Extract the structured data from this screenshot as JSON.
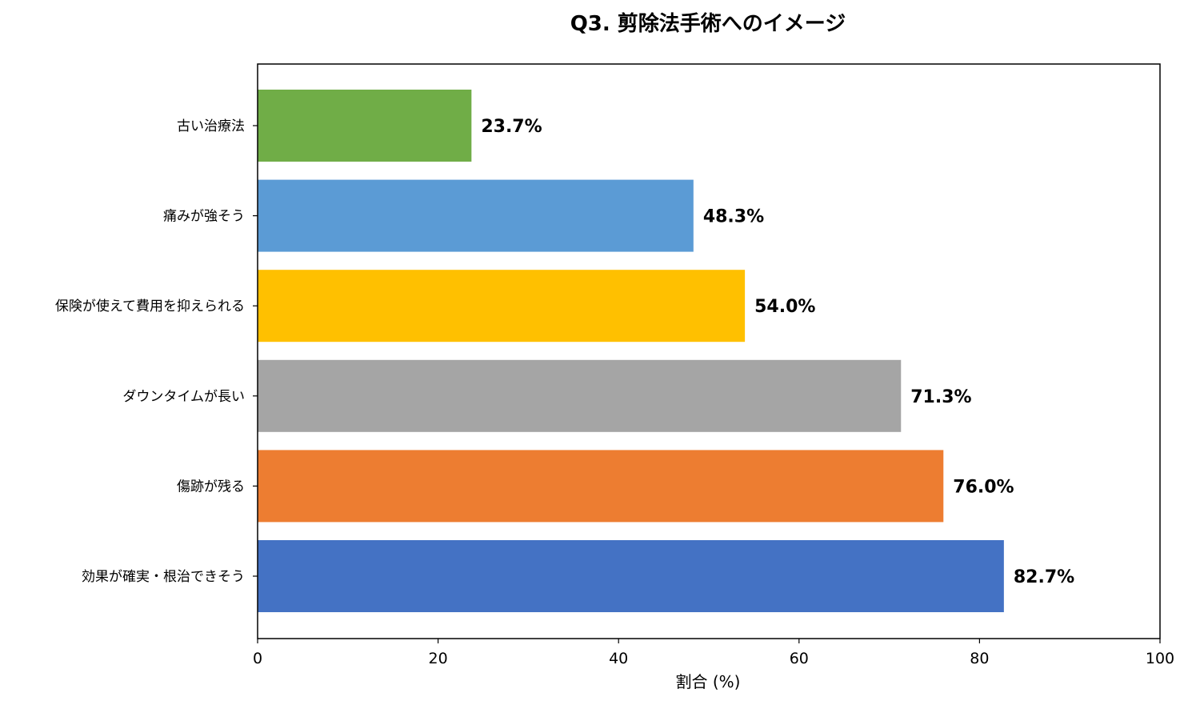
{
  "chart_data": {
    "type": "bar",
    "orientation": "horizontal",
    "title": "Q3. 剪除法手術へのイメージ",
    "xlabel": "割合 (%)",
    "ylabel": "",
    "xlim": [
      0,
      100
    ],
    "xticks": [
      0,
      20,
      40,
      60,
      80,
      100
    ],
    "grid": false,
    "categories": [
      "古い治療法",
      "痛みが強そう",
      "保険が使えて費用を抑えられる",
      "ダウンタイムが長い",
      "傷跡が残る",
      "効果が確実・根治できそう"
    ],
    "values": [
      23.7,
      48.3,
      54.0,
      71.3,
      76.0,
      82.7
    ],
    "value_labels": [
      "23.7%",
      "48.3%",
      "54.0%",
      "71.3%",
      "76.0%",
      "82.7%"
    ],
    "colors": [
      "#70AD47",
      "#5B9BD5",
      "#FFC000",
      "#A5A5A5",
      "#ED7D31",
      "#4472C4"
    ]
  }
}
